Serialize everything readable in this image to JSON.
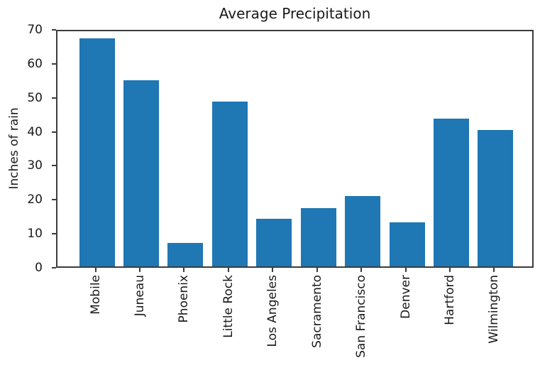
{
  "figure": {
    "background": "#ffffff"
  },
  "chart_data": {
    "type": "bar",
    "title": "Average Precipitation",
    "xlabel": "",
    "ylabel": "Inches of rain",
    "categories": [
      "Mobile",
      "Juneau",
      "Phoenix",
      "Little Rock",
      "Los Angeles",
      "Sacramento",
      "San Francisco",
      "Denver",
      "Hartford",
      "Wilmington"
    ],
    "values": [
      67.0,
      54.7,
      7.0,
      48.5,
      14.0,
      17.2,
      20.7,
      13.0,
      43.4,
      40.2
    ],
    "ylim": [
      0,
      70
    ],
    "yticks": [
      0,
      10,
      20,
      30,
      40,
      50,
      60,
      70
    ],
    "xlim": [
      -0.89,
      9.89
    ],
    "bar_width_fraction": 0.8,
    "bar_color": "#1f77b4",
    "axis_color": "#3c3c3c",
    "text_color": "#1a1a1a",
    "grid": false,
    "legend": null,
    "xtick_rotation_degrees": 90
  }
}
